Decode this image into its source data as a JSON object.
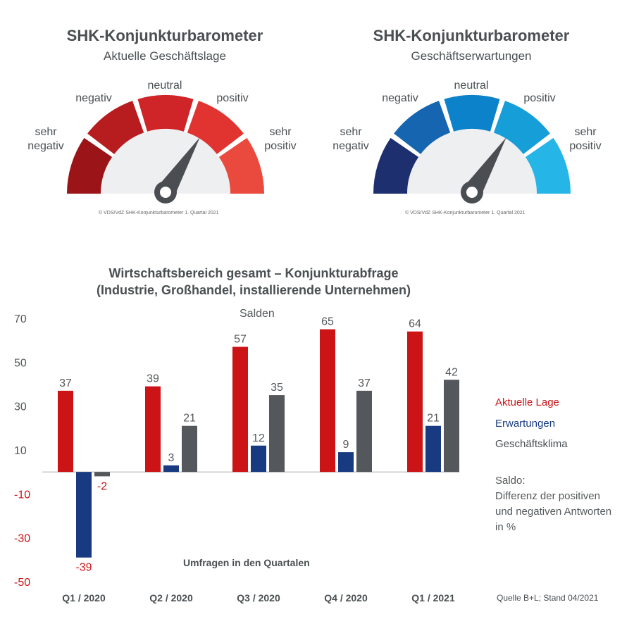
{
  "gauges": [
    {
      "title": "SHK-Konjunkturbarometer",
      "subtitle": "Aktuelle Geschäftslage",
      "labels": [
        "sehr\nnegativ",
        "negativ",
        "neutral",
        "positiv",
        "sehr\npositiv"
      ],
      "colors": [
        "#9b1518",
        "#b71c1f",
        "#cf2428",
        "#e1332f",
        "#ea4a3d"
      ],
      "needle_segment": 3,
      "copyright": "© VDS/VdZ SHK-Konjunkturbarometer 1. Quartal 2021"
    },
    {
      "title": "SHK-Konjunkturbarometer",
      "subtitle": "Geschäftserwartungen",
      "labels": [
        "sehr\nnegativ",
        "negativ",
        "neutral",
        "positiv",
        "sehr\npositiv"
      ],
      "colors": [
        "#1e2f70",
        "#1565b0",
        "#0b82c9",
        "#169ed9",
        "#25b5e6"
      ],
      "needle_segment": 3,
      "copyright": "© VDS/VdZ SHK-Konjunkturbarometer 1. Quartal 2021"
    }
  ],
  "chart_data": {
    "type": "bar",
    "title": "Wirtschaftsbereich gesamt – Konjunkturabfrage\n(Industrie, Großhandel, installierende Unternehmen)",
    "subtitle": "Salden",
    "xlabel": "Umfragen in den Quartalen",
    "categories": [
      "Q1 / 2020",
      "Q2 / 2020",
      "Q3 / 2020",
      "Q4 / 2020",
      "Q1 / 2021"
    ],
    "ylim": [
      -50,
      70
    ],
    "yticks": [
      70,
      50,
      30,
      10,
      -10,
      -30,
      -50
    ],
    "series": [
      {
        "name": "Aktuelle Lage",
        "color": "#cc1417",
        "values": [
          37,
          39,
          57,
          65,
          64
        ]
      },
      {
        "name": "Erwartungen",
        "color": "#173a80",
        "values": [
          -39,
          3,
          12,
          9,
          21
        ]
      },
      {
        "name": "Geschäftsklima",
        "color": "#54575b",
        "values": [
          -2,
          21,
          35,
          37,
          42
        ]
      }
    ],
    "negative_color": "#cc1417",
    "grid": false,
    "legend_position": "right"
  },
  "note": "Saldo:\nDifferenz der positiven\nund negativen Antworten\nin %",
  "source": "Quelle B+L; Stand 04/2021"
}
